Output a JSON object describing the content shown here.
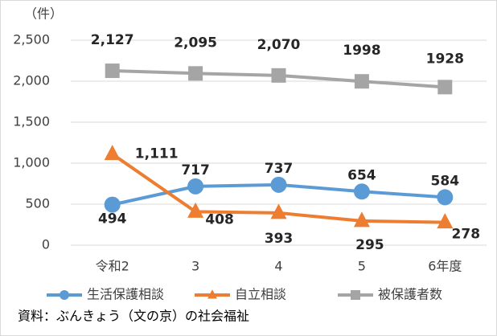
{
  "chart_data": {
    "type": "line",
    "unit_label": "（件）",
    "categories": [
      "令和2",
      "3",
      "4",
      "5",
      "6年度"
    ],
    "series": [
      {
        "name": "生活保護相談",
        "color": "#5b9bd5",
        "marker": "circle",
        "values": [
          494,
          717,
          737,
          654,
          584
        ]
      },
      {
        "name": "自立相談",
        "color": "#ed7d31",
        "marker": "triangle",
        "values": [
          1111,
          408,
          393,
          295,
          278
        ],
        "value_labels": [
          "1,111",
          "408",
          "393",
          "295",
          "278"
        ]
      },
      {
        "name": "被保護者数",
        "color": "#a5a5a5",
        "marker": "square",
        "values": [
          2127,
          2095,
          2070,
          1998,
          1928
        ],
        "value_labels": [
          "2,127",
          "2,095",
          "2,070",
          "1998",
          "1928"
        ]
      }
    ],
    "ylim": [
      0,
      2500
    ],
    "yticks": [
      0,
      500,
      {
        "value": 1000,
        "label": "1,000"
      },
      {
        "value": 1500,
        "label": "1,500"
      },
      {
        "value": 2000,
        "label": "2,000"
      },
      {
        "value": 2500,
        "label": "2,500"
      }
    ],
    "grid": true,
    "legend": "bottom",
    "source": "資料：ぶんきょう（文の京）の社会福祉"
  }
}
